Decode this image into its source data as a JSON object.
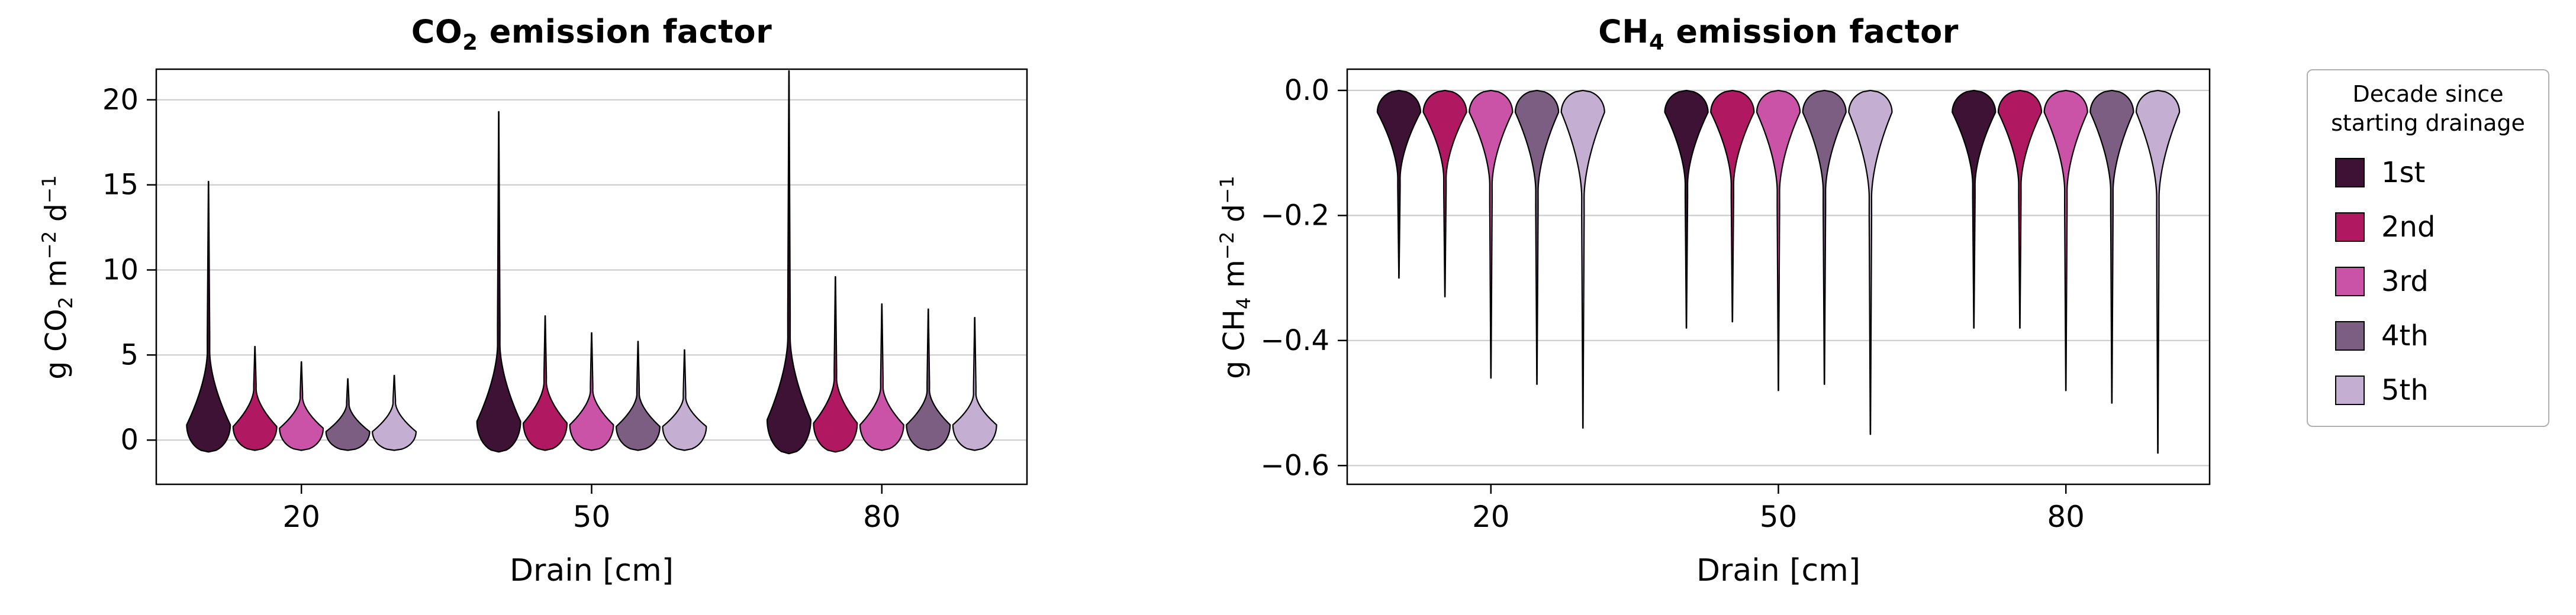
{
  "colors": {
    "background": "#ffffff",
    "grid": "#cccccc",
    "axis": "#000000",
    "violin_edge": "#000000",
    "legend_border": "#b0b0b0"
  },
  "legend": {
    "title_line1": "Decade since",
    "title_line2": "starting drainage",
    "entries": [
      {
        "label": "1st",
        "color": "#3d1235"
      },
      {
        "label": "2nd",
        "color": "#b01962"
      },
      {
        "label": "3rd",
        "color": "#ca53a7"
      },
      {
        "label": "4th",
        "color": "#7c5e83"
      },
      {
        "label": "5th",
        "color": "#c4aed1"
      }
    ]
  },
  "chart_data": [
    {
      "type": "violin",
      "orientation": "up",
      "title_parts": [
        {
          "t": "CO"
        },
        {
          "t": "2",
          "sub": true
        },
        {
          "t": " emission factor"
        }
      ],
      "ylabel_parts": [
        {
          "t": "g CO"
        },
        {
          "t": "2",
          "sub": true
        },
        {
          "t": " m"
        },
        {
          "t": "−2",
          "sup": true
        },
        {
          "t": " d"
        },
        {
          "t": "−1",
          "sup": true
        }
      ],
      "xlabel": "Drain [cm]",
      "categories": [
        "20",
        "50",
        "80"
      ],
      "yticks": [
        {
          "v": 0,
          "label": "0"
        },
        {
          "v": 5,
          "label": "5"
        },
        {
          "v": 10,
          "label": "10"
        },
        {
          "v": 15,
          "label": "15"
        },
        {
          "v": 20,
          "label": "20"
        }
      ],
      "ylim": [
        -2.6,
        21.8
      ],
      "grid": true,
      "series": [
        {
          "name": "1st",
          "color": "#3d1235",
          "by_category": [
            {
              "min": -0.7,
              "peak": 0.9,
              "body_top": 5.2,
              "max": 15.2
            },
            {
              "min": -0.7,
              "peak": 1.1,
              "body_top": 5.6,
              "max": 19.3
            },
            {
              "min": -0.8,
              "peak": 1.2,
              "body_top": 6.0,
              "max": 21.7
            }
          ]
        },
        {
          "name": "2nd",
          "color": "#b01962",
          "by_category": [
            {
              "min": -0.6,
              "peak": 0.8,
              "body_top": 3.0,
              "max": 5.5
            },
            {
              "min": -0.6,
              "peak": 1.0,
              "body_top": 3.4,
              "max": 7.3
            },
            {
              "min": -0.7,
              "peak": 1.0,
              "body_top": 3.6,
              "max": 9.6
            }
          ]
        },
        {
          "name": "3rd",
          "color": "#ca53a7",
          "by_category": [
            {
              "min": -0.6,
              "peak": 0.7,
              "body_top": 2.5,
              "max": 4.6
            },
            {
              "min": -0.6,
              "peak": 0.9,
              "body_top": 2.9,
              "max": 6.3
            },
            {
              "min": -0.6,
              "peak": 0.9,
              "body_top": 3.1,
              "max": 8.0
            }
          ]
        },
        {
          "name": "4th",
          "color": "#7c5e83",
          "by_category": [
            {
              "min": -0.6,
              "peak": 0.5,
              "body_top": 2.1,
              "max": 3.6
            },
            {
              "min": -0.6,
              "peak": 0.8,
              "body_top": 2.7,
              "max": 5.8
            },
            {
              "min": -0.6,
              "peak": 0.9,
              "body_top": 2.9,
              "max": 7.7
            }
          ]
        },
        {
          "name": "5th",
          "color": "#c4aed1",
          "by_category": [
            {
              "min": -0.6,
              "peak": 0.5,
              "body_top": 2.2,
              "max": 3.8
            },
            {
              "min": -0.6,
              "peak": 0.8,
              "body_top": 2.5,
              "max": 5.3
            },
            {
              "min": -0.6,
              "peak": 0.9,
              "body_top": 2.7,
              "max": 7.2
            }
          ]
        }
      ]
    },
    {
      "type": "violin",
      "orientation": "down",
      "title_parts": [
        {
          "t": "CH"
        },
        {
          "t": "4",
          "sub": true
        },
        {
          "t": " emission factor"
        }
      ],
      "ylabel_parts": [
        {
          "t": "g CH"
        },
        {
          "t": "4",
          "sub": true
        },
        {
          "t": " m"
        },
        {
          "t": "−2",
          "sup": true
        },
        {
          "t": " d"
        },
        {
          "t": "−1",
          "sup": true
        }
      ],
      "xlabel": "Drain [cm]",
      "categories": [
        "20",
        "50",
        "80"
      ],
      "yticks": [
        {
          "v": 0,
          "label": "0.0"
        },
        {
          "v": -0.2,
          "label": "−0.2"
        },
        {
          "v": -0.4,
          "label": "−0.4"
        },
        {
          "v": -0.6,
          "label": "−0.6"
        }
      ],
      "ylim": [
        -0.63,
        0.034
      ],
      "grid": true,
      "series": [
        {
          "name": "1st",
          "color": "#3d1235",
          "by_category": [
            {
              "max": 0.0,
              "peak": -0.035,
              "body_bottom": -0.14,
              "min": -0.3
            },
            {
              "max": 0.0,
              "peak": -0.035,
              "body_bottom": -0.15,
              "min": -0.38
            },
            {
              "max": 0.0,
              "peak": -0.035,
              "body_bottom": -0.15,
              "min": -0.38
            }
          ]
        },
        {
          "name": "2nd",
          "color": "#b01962",
          "by_category": [
            {
              "max": 0.0,
              "peak": -0.035,
              "body_bottom": -0.14,
              "min": -0.33
            },
            {
              "max": 0.0,
              "peak": -0.035,
              "body_bottom": -0.15,
              "min": -0.37
            },
            {
              "max": 0.0,
              "peak": -0.035,
              "body_bottom": -0.15,
              "min": -0.38
            }
          ]
        },
        {
          "name": "3rd",
          "color": "#ca53a7",
          "by_category": [
            {
              "max": 0.0,
              "peak": -0.035,
              "body_bottom": -0.15,
              "min": -0.46
            },
            {
              "max": 0.0,
              "peak": -0.035,
              "body_bottom": -0.16,
              "min": -0.48
            },
            {
              "max": 0.0,
              "peak": -0.035,
              "body_bottom": -0.16,
              "min": -0.48
            }
          ]
        },
        {
          "name": "4th",
          "color": "#7c5e83",
          "by_category": [
            {
              "max": 0.0,
              "peak": -0.035,
              "body_bottom": -0.16,
              "min": -0.47
            },
            {
              "max": 0.0,
              "peak": -0.035,
              "body_bottom": -0.16,
              "min": -0.47
            },
            {
              "max": 0.0,
              "peak": -0.035,
              "body_bottom": -0.16,
              "min": -0.5
            }
          ]
        },
        {
          "name": "5th",
          "color": "#c4aed1",
          "by_category": [
            {
              "max": 0.0,
              "peak": -0.035,
              "body_bottom": -0.17,
              "min": -0.54
            },
            {
              "max": 0.0,
              "peak": -0.035,
              "body_bottom": -0.17,
              "min": -0.55
            },
            {
              "max": 0.0,
              "peak": -0.035,
              "body_bottom": -0.17,
              "min": -0.58
            }
          ]
        }
      ]
    }
  ]
}
